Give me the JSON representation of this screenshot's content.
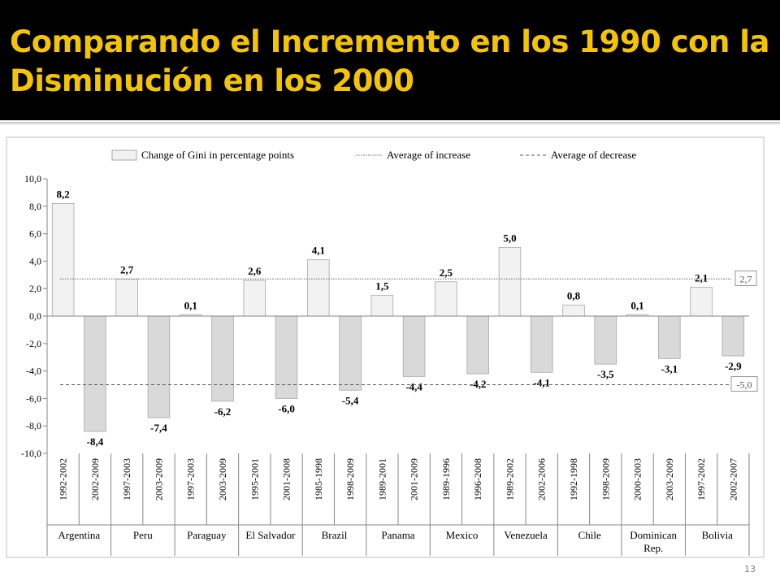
{
  "slide": {
    "title": "Comparando el Incremento en los 1990 con la Disminución en los 2000",
    "page_number": "13"
  },
  "chart_data": {
    "type": "bar",
    "legend_position": "top",
    "legend": {
      "bars": "Change of Gini in percentage points",
      "avg_increase": "Average of increase",
      "avg_decrease": "Average of decrease"
    },
    "ylim": [
      -10,
      10
    ],
    "y_ticks": [
      "10,0",
      "8,0",
      "6,0",
      "4,0",
      "2,0",
      "0,0",
      "-2,0",
      "-4,0",
      "-6,0",
      "-8,0",
      "-10,0"
    ],
    "y_tick_values": [
      10,
      8,
      6,
      4,
      2,
      0,
      -2,
      -4,
      -6,
      -8,
      -10
    ],
    "periods": [
      "1992-2002",
      "2002-2009",
      "1997-2003",
      "2003-2009",
      "1997-2003",
      "2003-2009",
      "1995-2001",
      "2001-2008",
      "1985-1998",
      "1998-2009",
      "1989-2001",
      "2001-2009",
      "1989-1996",
      "1996-2008",
      "1989-2002",
      "2002-2006",
      "1992-1998",
      "1998-2009",
      "2000-2003",
      "2003-2009",
      "1997-2002",
      "2002-2007"
    ],
    "values": [
      8.2,
      -8.4,
      2.7,
      -7.4,
      0.1,
      -6.2,
      2.6,
      -6.0,
      4.1,
      -5.4,
      1.5,
      -4.4,
      2.5,
      -4.2,
      5.0,
      -4.1,
      0.8,
      -3.5,
      0.1,
      -3.1,
      2.1,
      -2.9
    ],
    "value_labels": [
      "8,2",
      "-8,4",
      "2,7",
      "-7,4",
      "0,1",
      "-6,2",
      "2,6",
      "-6,0",
      "4,1",
      "-5,4",
      "1,5",
      "-4,4",
      "2,5",
      "-4,2",
      "5,0",
      "-4,1",
      "0,8",
      "-3,5",
      "0,1",
      "-3,1",
      "2,1",
      "-2,9"
    ],
    "countries": [
      "Argentina",
      "Peru",
      "Paraguay",
      "El Salvador",
      "Brazil",
      "Panama",
      "Mexico",
      "Venezuela",
      "Chile",
      "Dominican Rep.",
      "Bolivia"
    ],
    "country_lines": [
      [
        "Argentina"
      ],
      [
        "Peru"
      ],
      [
        "Paraguay"
      ],
      [
        "El Salvador"
      ],
      [
        "Brazil"
      ],
      [
        "Panama"
      ],
      [
        "Mexico"
      ],
      [
        "Venezuela"
      ],
      [
        "Chile"
      ],
      [
        "Dominican",
        "Rep."
      ],
      [
        "Bolivia"
      ]
    ],
    "average_increase": 2.7,
    "average_increase_label": "2,7",
    "average_decrease": -5.0,
    "average_decrease_label": "-5,0",
    "grid": false,
    "colors": {
      "increase_fill": "#f2f2f2",
      "decrease_fill": "#d9d9d9",
      "bar_stroke": "#a6a6a6",
      "avg_increase_line": "#7f7f7f",
      "avg_decrease_line": "#595959"
    }
  }
}
